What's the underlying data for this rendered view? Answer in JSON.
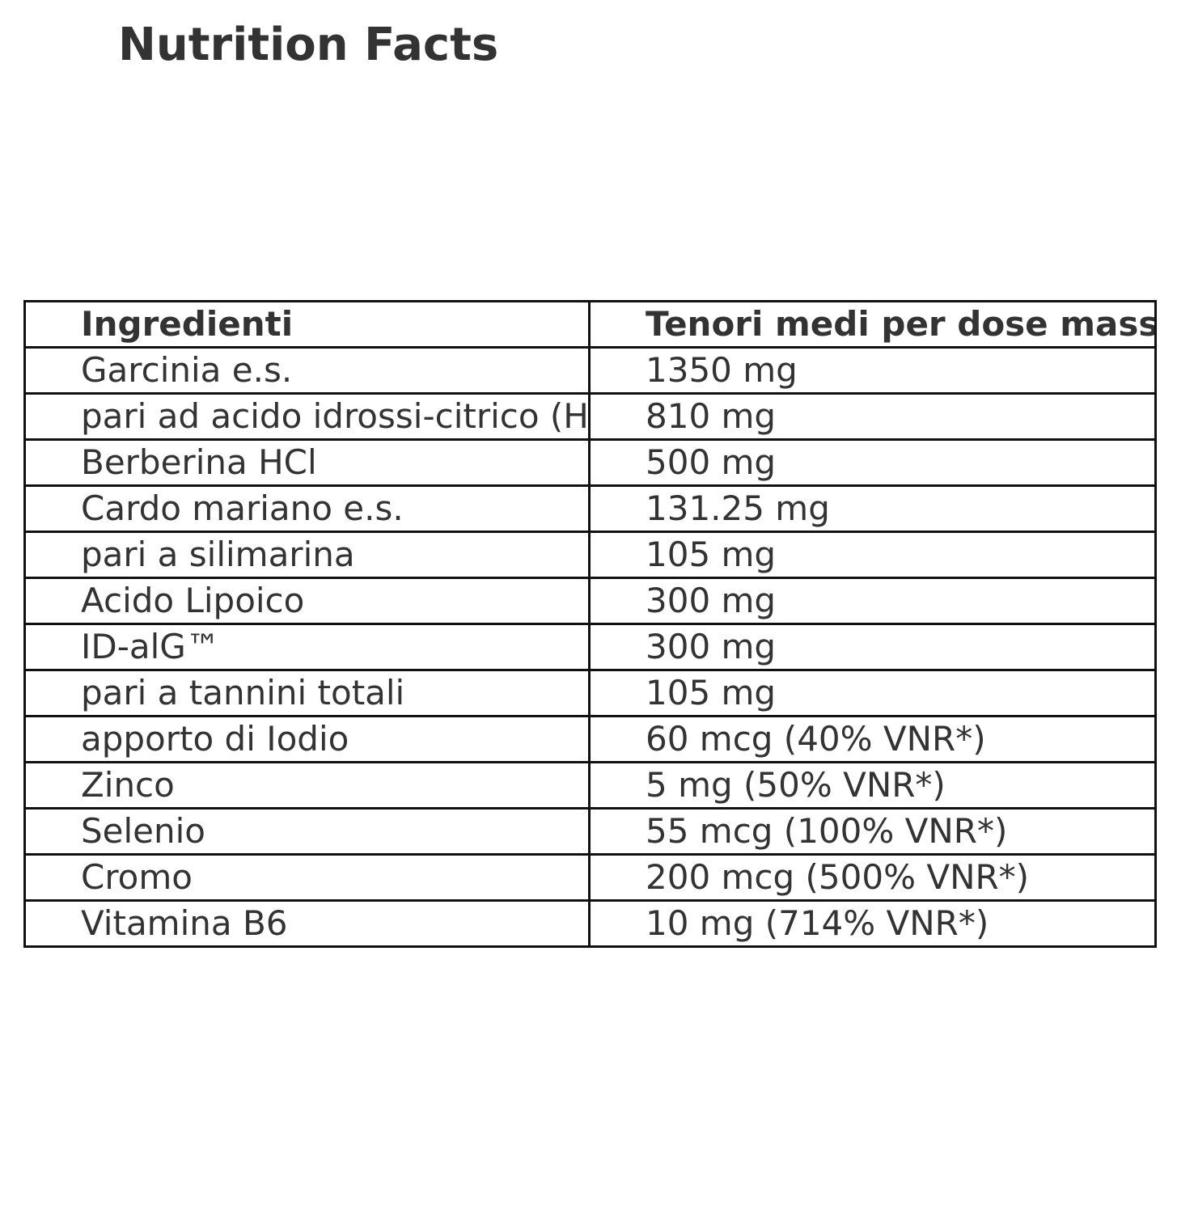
{
  "title": "Nutrition Facts",
  "table": {
    "headers": [
      "Ingredienti",
      "Tenori medi per dose massima giornaliera"
    ],
    "rows": [
      [
        "Garcinia e.s.",
        "1350 mg"
      ],
      [
        "pari ad acido idrossi-citrico (HCA)",
        "810 mg"
      ],
      [
        "Berberina HCl",
        "500 mg"
      ],
      [
        "Cardo mariano e.s.",
        "131.25 mg"
      ],
      [
        "pari a silimarina",
        "105 mg"
      ],
      [
        "Acido Lipoico",
        "300 mg"
      ],
      [
        "ID-alG™",
        "300 mg"
      ],
      [
        "pari a tannini totali",
        "105 mg"
      ],
      [
        "apporto di Iodio",
        "60 mcg (40% VNR*)"
      ],
      [
        "Zinco",
        "5 mg (50% VNR*)"
      ],
      [
        "Selenio",
        "55 mcg (100% VNR*)"
      ],
      [
        "Cromo",
        "200 mcg (500% VNR*)"
      ],
      [
        "Vitamina B6",
        "10 mg (714% VNR*)"
      ]
    ]
  }
}
